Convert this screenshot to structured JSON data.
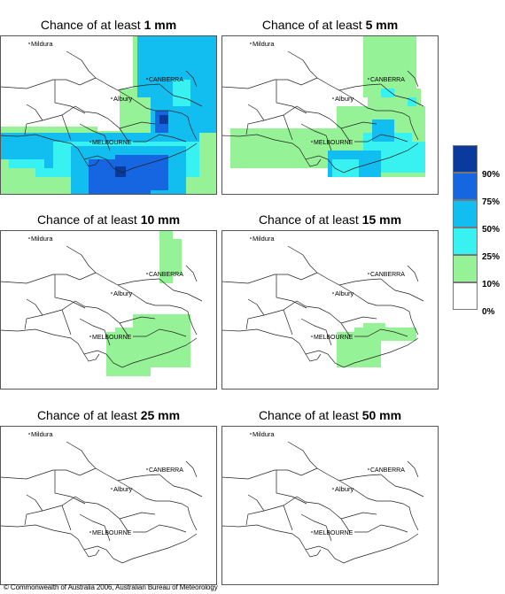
{
  "panels": [
    {
      "prefix": "Chance of at least ",
      "amount": "1 mm"
    },
    {
      "prefix": "Chance of at least ",
      "amount": "5 mm"
    },
    {
      "prefix": "Chance of at least ",
      "amount": "10 mm"
    },
    {
      "prefix": "Chance of at least ",
      "amount": "15 mm"
    },
    {
      "prefix": "Chance of at least ",
      "amount": "25 mm"
    },
    {
      "prefix": "Chance of at least ",
      "amount": "50 mm"
    }
  ],
  "places": {
    "mildura": "Mildura",
    "canberra": "CANBERRA",
    "albury": "Albury",
    "melbourne": "MELBOURNE"
  },
  "legend": {
    "labels": [
      "90%",
      "75%",
      "50%",
      "25%",
      "10%",
      "0%"
    ],
    "colors": [
      "#0a3a9c",
      "#1566e0",
      "#12bdf0",
      "#38f2f2",
      "#96f296",
      "#ffffff"
    ]
  },
  "copyright": "© Commonwealth of Australia 2006, Australian Bureau of Meteorology"
}
